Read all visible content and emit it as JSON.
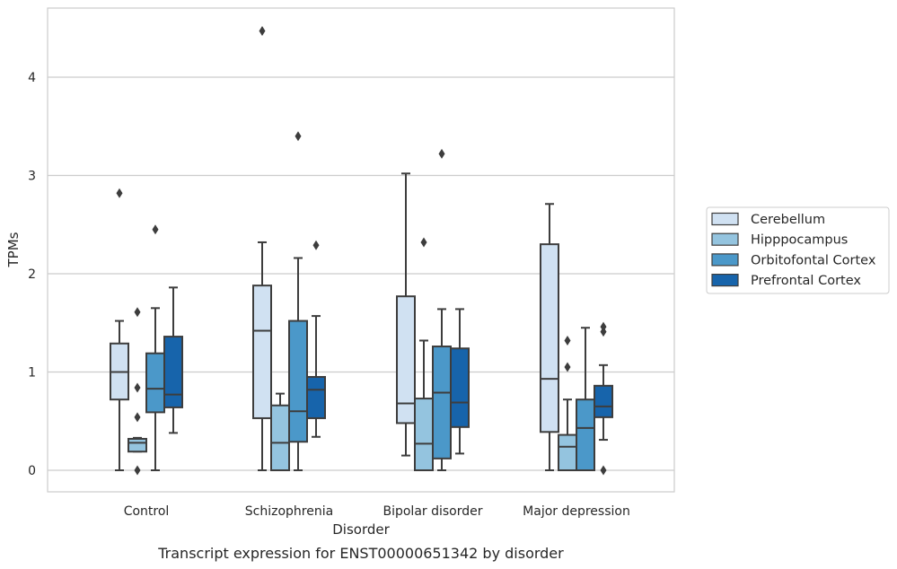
{
  "chart_data": {
    "type": "box",
    "title": "",
    "caption": "Transcript expression for ENST00000651342 by disorder",
    "xlabel": "Disorder",
    "ylabel": "TPMs",
    "ylim": [
      -0.2,
      4.7
    ],
    "yticks": [
      0,
      1,
      2,
      3,
      4
    ],
    "grid": true,
    "legend_position": "right",
    "categories": [
      "Control",
      "Schizophrenia",
      "Bipolar disorder",
      "Major depression"
    ],
    "series": [
      {
        "name": "Cerebellum",
        "color": "#d0e1f2",
        "boxes": [
          {
            "whislo": 0.0,
            "q1": 0.72,
            "med": 1.0,
            "q3": 1.29,
            "whishi": 1.52,
            "fliers": [
              2.82
            ]
          },
          {
            "whislo": 0.0,
            "q1": 0.53,
            "med": 1.42,
            "q3": 1.88,
            "whishi": 2.32,
            "fliers": [
              4.47
            ]
          },
          {
            "whislo": 0.15,
            "q1": 0.48,
            "med": 0.68,
            "q3": 1.77,
            "whishi": 3.02,
            "fliers": []
          },
          {
            "whislo": 0.0,
            "q1": 0.39,
            "med": 0.93,
            "q3": 2.3,
            "whishi": 2.71,
            "fliers": []
          }
        ]
      },
      {
        "name": "Hipppocampus",
        "color": "#94c4df",
        "boxes": [
          {
            "whislo": 0.19,
            "q1": 0.19,
            "med": 0.28,
            "q3": 0.32,
            "whishi": 0.33,
            "fliers": [
              1.61,
              0.84,
              0.54,
              0.0
            ]
          },
          {
            "whislo": 0.0,
            "q1": 0.0,
            "med": 0.28,
            "q3": 0.66,
            "whishi": 0.78,
            "fliers": []
          },
          {
            "whislo": 0.0,
            "q1": 0.0,
            "med": 0.27,
            "q3": 0.73,
            "whishi": 1.32,
            "fliers": [
              2.32
            ]
          },
          {
            "whislo": 0.0,
            "q1": 0.0,
            "med": 0.24,
            "q3": 0.36,
            "whishi": 0.72,
            "fliers": [
              1.32,
              1.05
            ]
          }
        ]
      },
      {
        "name": "Orbitofontal Cortex",
        "color": "#4b98c9",
        "boxes": [
          {
            "whislo": 0.0,
            "q1": 0.59,
            "med": 0.83,
            "q3": 1.19,
            "whishi": 1.65,
            "fliers": [
              2.45
            ]
          },
          {
            "whislo": 0.0,
            "q1": 0.29,
            "med": 0.6,
            "q3": 1.52,
            "whishi": 2.16,
            "fliers": [
              3.4
            ]
          },
          {
            "whislo": 0.0,
            "q1": 0.12,
            "med": 0.79,
            "q3": 1.26,
            "whishi": 1.64,
            "fliers": [
              3.22
            ]
          },
          {
            "whislo": 0.0,
            "q1": 0.0,
            "med": 0.43,
            "q3": 0.72,
            "whishi": 1.45,
            "fliers": []
          }
        ]
      },
      {
        "name": "Prefrontal Cortex",
        "color": "#1764ab",
        "boxes": [
          {
            "whislo": 0.38,
            "q1": 0.64,
            "med": 0.77,
            "q3": 1.36,
            "whishi": 1.86,
            "fliers": []
          },
          {
            "whislo": 0.34,
            "q1": 0.53,
            "med": 0.82,
            "q3": 0.95,
            "whishi": 1.57,
            "fliers": [
              2.29
            ]
          },
          {
            "whislo": 0.17,
            "q1": 0.44,
            "med": 0.69,
            "q3": 1.24,
            "whishi": 1.64,
            "fliers": []
          },
          {
            "whislo": 0.31,
            "q1": 0.54,
            "med": 0.65,
            "q3": 0.86,
            "whishi": 1.07,
            "fliers": [
              1.46,
              1.41,
              0.0
            ]
          }
        ]
      }
    ]
  },
  "style": {
    "line_color": "#3d3d3d",
    "grid_color": "#cccccc",
    "frame_color": "#cccccc"
  }
}
